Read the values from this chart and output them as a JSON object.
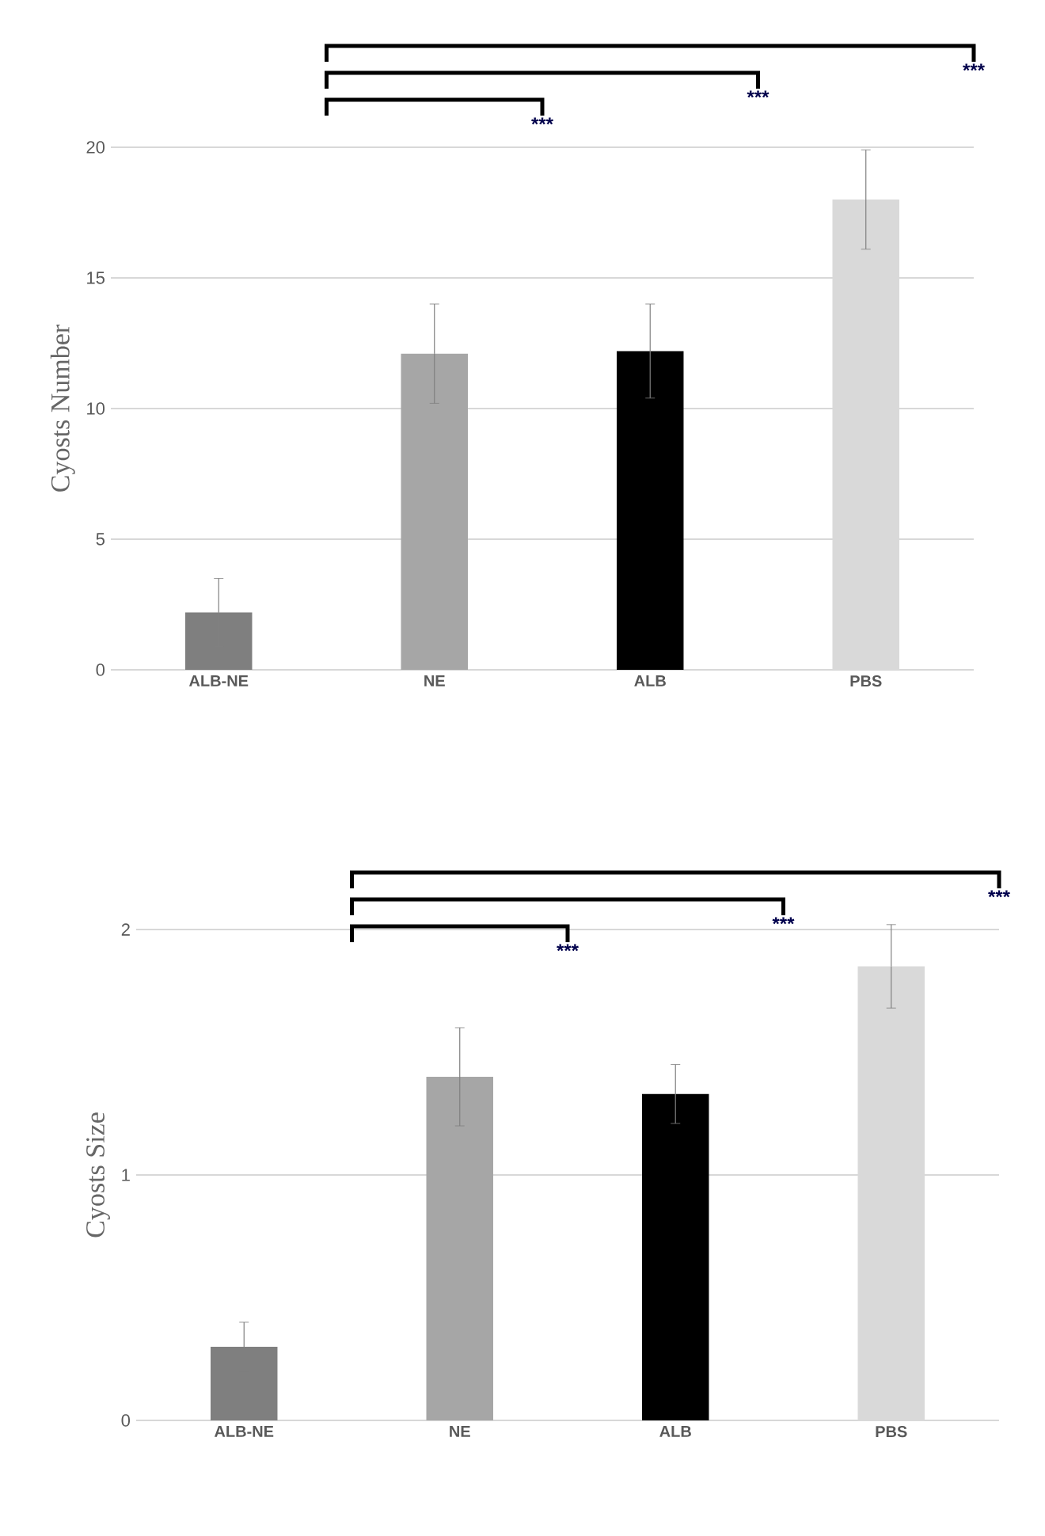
{
  "chart_data": [
    {
      "type": "bar",
      "ylabel": "Cyosts  Number",
      "categories": [
        "ALB-NE",
        "NE",
        "ALB",
        "PBS"
      ],
      "values": [
        2.2,
        12.1,
        12.2,
        18.0
      ],
      "errors": [
        1.3,
        1.9,
        1.8,
        1.9
      ],
      "colors": [
        "#7f7f7f",
        "#a6a6a6",
        "#000000",
        "#d9d9d9"
      ],
      "ylim": [
        0,
        20
      ],
      "yticks": [
        0,
        5,
        10,
        15,
        20
      ],
      "grid": "y",
      "annotations": [
        "***",
        "***",
        "***"
      ]
    },
    {
      "type": "bar",
      "ylabel": "Cyosts  Size",
      "categories": [
        "ALB-NE",
        "NE",
        "ALB",
        "PBS"
      ],
      "values": [
        0.3,
        1.4,
        1.33,
        1.85
      ],
      "errors": [
        0.1,
        0.2,
        0.12,
        0.17
      ],
      "colors": [
        "#7f7f7f",
        "#a6a6a6",
        "#000000",
        "#d9d9d9"
      ],
      "ylim": [
        0,
        2
      ],
      "yticks": [
        0,
        1,
        2
      ],
      "grid": "y",
      "annotations": [
        "***",
        "***",
        "***"
      ]
    }
  ]
}
